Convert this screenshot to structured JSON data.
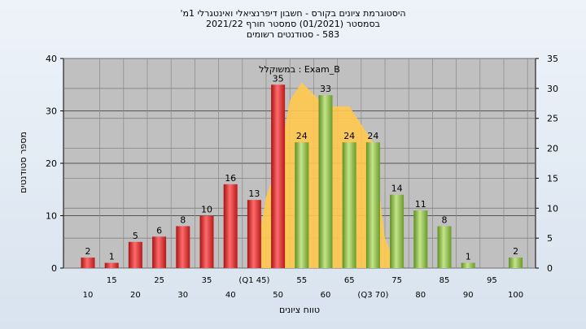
{
  "chart_data": {
    "type": "bar",
    "title_lines": [
      "היסטוגרמת ציונים בקורס - חשבון דיפרנציאלי ואינטגרלי 1מ'",
      "בסמסטר  (01/2021)  סמסטר חורף 2021/22",
      "583 - סטודנטים רשומים"
    ],
    "xlabel": "טווח ציונים",
    "ylabel": "מספר סטודנטים",
    "ylim": [
      0,
      40
    ],
    "y_ticks": [
      0,
      10,
      20,
      30,
      40
    ],
    "y2lim": [
      0,
      35
    ],
    "y2_ticks": [
      0,
      5,
      10,
      15,
      20,
      25,
      30,
      35
    ],
    "categories": [
      "10",
      "15",
      "20",
      "25",
      "30",
      "35",
      "40",
      "(Q1 45)",
      "50",
      "55",
      "60",
      "65",
      "(Q3 70)",
      "75",
      "80",
      "85",
      "90",
      "95",
      "100"
    ],
    "values": [
      2,
      1,
      5,
      6,
      8,
      10,
      16,
      13,
      35,
      24,
      33,
      24,
      24,
      14,
      11,
      8,
      1,
      0,
      2
    ],
    "bar_colors": [
      "red",
      "red",
      "red",
      "red",
      "red",
      "red",
      "red",
      "red",
      "red",
      "green",
      "green",
      "green",
      "green",
      "green",
      "green",
      "green",
      "green",
      "green",
      "green"
    ],
    "data_labels": [
      "2",
      "1",
      "5",
      "6",
      "8",
      "10",
      "16",
      "13",
      "35",
      "24",
      "33",
      "24",
      "24",
      "14",
      "11",
      "8",
      "1",
      "",
      "2"
    ],
    "distribution_area": {
      "label": "Exam_B : במשוקלל",
      "x_positions": [
        7,
        7.5,
        8,
        8.5,
        9,
        9.5,
        10,
        10.5,
        11,
        11.5,
        12,
        12.5,
        13
      ],
      "y2_values": [
        0,
        12,
        17,
        28,
        31,
        29,
        27,
        27,
        27,
        24,
        21,
        5,
        0
      ]
    },
    "grid": true,
    "legend": "none",
    "colors": {
      "red_bar": "#e23c3c",
      "green_bar": "#8fc04a",
      "area_fill": "#ffc94d",
      "plot_bg": "#c0c0c0",
      "grid": "#808080"
    }
  }
}
